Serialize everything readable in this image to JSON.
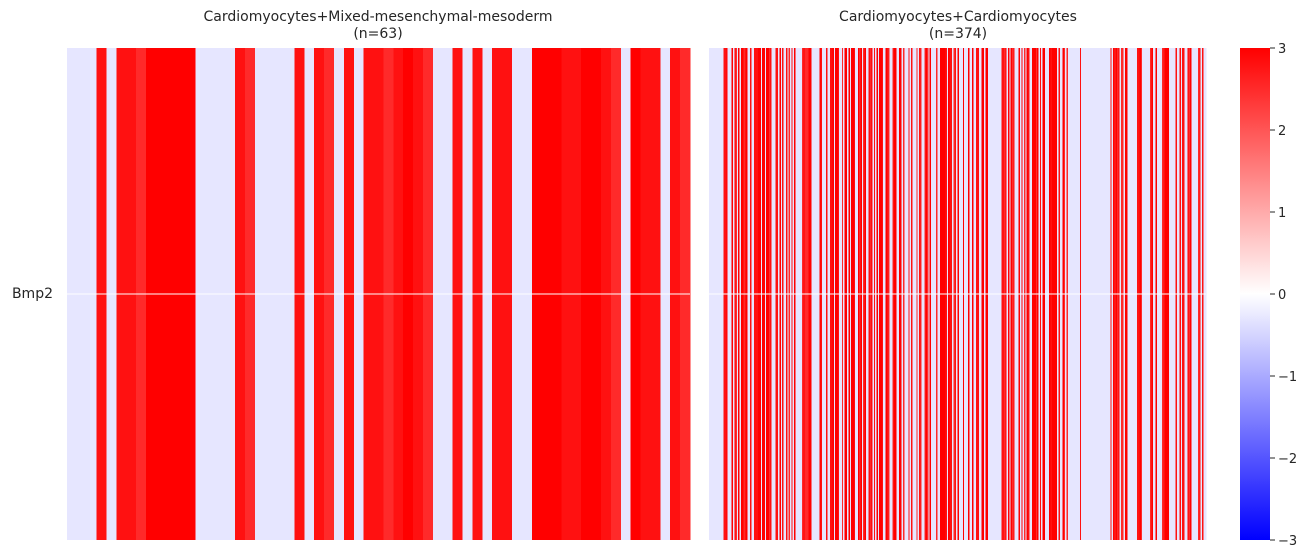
{
  "chart_data": {
    "type": "heatmap",
    "row_labels": [
      "Bmp2"
    ],
    "panels": [
      {
        "title": "Cardiomyocytes+Mixed-mesenchymal-mesoderm",
        "subtitle": "(n=63)",
        "n": 63,
        "values": [
          -0.3,
          -0.3,
          -0.3,
          2.8,
          -0.3,
          2.8,
          2.8,
          2.5,
          3.0,
          3.0,
          3.0,
          3.0,
          3.0,
          -0.3,
          -0.3,
          -0.3,
          -0.3,
          2.8,
          2.5,
          -0.3,
          -0.3,
          -0.3,
          -0.3,
          2.8,
          -0.3,
          2.8,
          2.5,
          -0.3,
          2.8,
          -0.3,
          2.8,
          2.8,
          2.5,
          2.8,
          3.0,
          2.8,
          2.5,
          -0.3,
          -0.3,
          2.8,
          -0.3,
          2.8,
          -0.3,
          2.8,
          2.8,
          -0.3,
          -0.3,
          3.0,
          3.0,
          3.0,
          2.8,
          2.8,
          3.0,
          3.0,
          2.8,
          2.5,
          -0.3,
          3.0,
          2.8,
          2.8,
          -0.3,
          2.8,
          2.5
        ]
      },
      {
        "title": "Cardiomyocytes+Cardiomyocytes",
        "subtitle": "(n=374)",
        "n": 374
      }
    ],
    "colorbar": {
      "ticks": [
        "3",
        "2",
        "1",
        "0",
        "−1",
        "−2",
        "−3"
      ],
      "range": [
        -3,
        3
      ],
      "colors": {
        "low": "#0000ff",
        "mid": "#ffffff",
        "high": "#ff0000"
      }
    },
    "xlabel": "",
    "ylabel": "",
    "grid": false,
    "legend": "colorbar right"
  }
}
